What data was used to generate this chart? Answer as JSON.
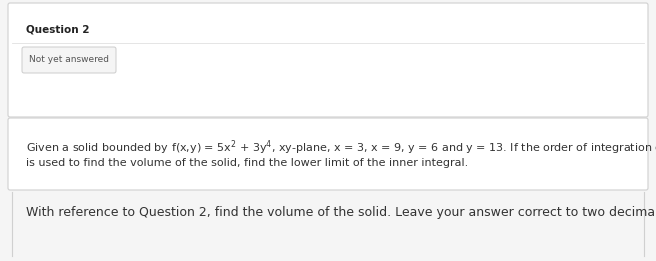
{
  "bg_color": "#f5f5f5",
  "box_bg": "#ffffff",
  "box_edge": "#d0d0d0",
  "question_label": "Question 2",
  "status_label": "Not yet answered",
  "status_text_color": "#555555",
  "question_text_line1": "Given a solid bounded by f(x,y) = 5x$^2$ + 3y$^4$, xy-plane, x = 3, x = 9, y = 6 and y = 13. If the order of integration dydx",
  "question_text_line2": "is used to find the volume of the solid, find the lower limit of the inner integral.",
  "followup_text": "With reference to Question 2, find the volume of the solid. Leave your answer correct to two decimal places.",
  "question_label_fontsize": 7.5,
  "status_fontsize": 6.5,
  "body_fontsize": 8.0,
  "followup_fontsize": 9.0
}
